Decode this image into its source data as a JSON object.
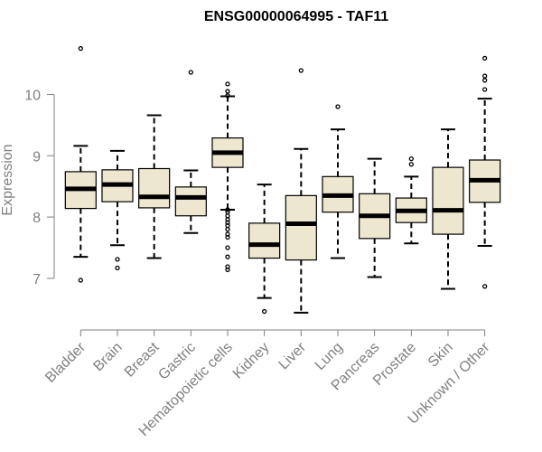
{
  "chart_data": {
    "type": "boxplot",
    "title": "ENSG00000064995 - TAF11",
    "xlabel": "",
    "ylabel": "Expression",
    "ylim": [
      6.35,
      10.95
    ],
    "yticks": [
      7,
      8,
      9,
      10
    ],
    "grid": false,
    "box_fill": "#ede7cf",
    "line_color": "#000000",
    "axis_color": "#808080",
    "categories": [
      "Bladder",
      "Brain",
      "Breast",
      "Gastric",
      "Hematopoietic cells",
      "Kidney",
      "Liver",
      "Lung",
      "Pancreas",
      "Prostate",
      "Skin",
      "Unknown / Other"
    ],
    "boxes": [
      {
        "whisker_low": 7.35,
        "q1": 8.14,
        "median": 8.46,
        "q3": 8.74,
        "whisker_high": 9.16,
        "outliers": [
          6.97,
          10.75
        ]
      },
      {
        "whisker_low": 7.54,
        "q1": 8.25,
        "median": 8.53,
        "q3": 8.77,
        "whisker_high": 9.08,
        "outliers": [
          7.17,
          7.31
        ]
      },
      {
        "whisker_low": 7.33,
        "q1": 8.15,
        "median": 8.33,
        "q3": 8.79,
        "whisker_high": 9.66,
        "outliers": []
      },
      {
        "whisker_low": 7.74,
        "q1": 8.02,
        "median": 8.32,
        "q3": 8.49,
        "whisker_high": 8.76,
        "outliers": [
          10.36
        ]
      },
      {
        "whisker_low": 8.12,
        "q1": 8.81,
        "median": 9.05,
        "q3": 9.29,
        "whisker_high": 9.97,
        "outliers": [
          7.14,
          7.19,
          7.35,
          7.5,
          7.67,
          7.72,
          7.8,
          7.86,
          7.91,
          7.96,
          8.02,
          8.08,
          8.12,
          9.98,
          10.05,
          10.17
        ]
      },
      {
        "whisker_low": 6.68,
        "q1": 7.33,
        "median": 7.55,
        "q3": 7.9,
        "whisker_high": 8.53,
        "outliers": [
          6.46
        ]
      },
      {
        "whisker_low": 6.44,
        "q1": 7.3,
        "median": 7.89,
        "q3": 8.35,
        "whisker_high": 9.11,
        "outliers": [
          10.39
        ]
      },
      {
        "whisker_low": 7.33,
        "q1": 8.08,
        "median": 8.35,
        "q3": 8.66,
        "whisker_high": 9.43,
        "outliers": [
          9.8
        ]
      },
      {
        "whisker_low": 7.02,
        "q1": 7.65,
        "median": 8.02,
        "q3": 8.38,
        "whisker_high": 8.95,
        "outliers": []
      },
      {
        "whisker_low": 7.57,
        "q1": 7.91,
        "median": 8.1,
        "q3": 8.31,
        "whisker_high": 8.66,
        "outliers": [
          8.86,
          8.95
        ]
      },
      {
        "whisker_low": 6.83,
        "q1": 7.72,
        "median": 8.11,
        "q3": 8.81,
        "whisker_high": 9.43,
        "outliers": []
      },
      {
        "whisker_low": 7.53,
        "q1": 8.24,
        "median": 8.6,
        "q3": 8.93,
        "whisker_high": 9.93,
        "outliers": [
          6.87,
          10.08,
          10.23,
          10.3,
          10.59
        ]
      }
    ]
  }
}
